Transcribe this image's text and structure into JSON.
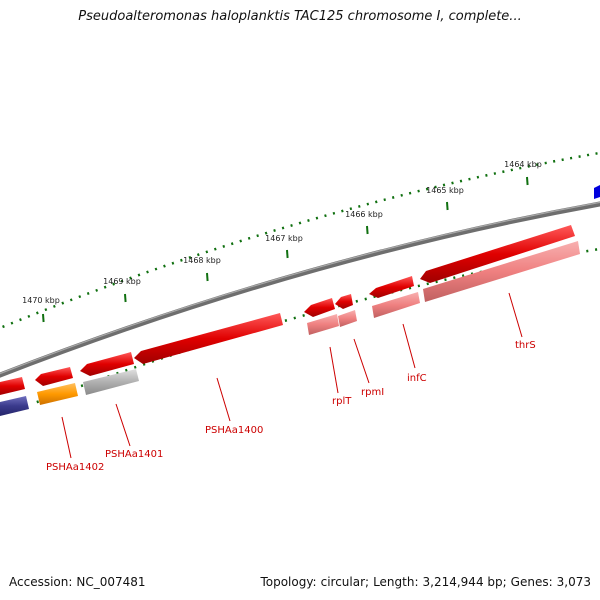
{
  "title": "Pseudoalteromonas haloplanktis TAC125 chromosome I, complete...",
  "footer": {
    "accession_label": "Accession:",
    "accession": "NC_007481",
    "topology_label": "Topology:",
    "topology": "circular;",
    "length_label": "Length:",
    "length": "3,214,944 bp;",
    "genes_label": "Genes:",
    "genes": "3,073"
  },
  "scale": {
    "labels": [
      "1464 kbp",
      "1465 kbp",
      "1466 kbp",
      "1467 kbp",
      "1468 kbp",
      "1469 kbp",
      "1470 kbp"
    ]
  },
  "genes": [
    {
      "name": "thrS",
      "color": "#e00000"
    },
    {
      "name": "infC",
      "color": "#e00000"
    },
    {
      "name": "rpmI",
      "color": "#e00000"
    },
    {
      "name": "rplT",
      "color": "#e00000"
    },
    {
      "name": "PSHAa1400",
      "color": "#e00000"
    },
    {
      "name": "PSHAa1401",
      "color": "#a0a0a0"
    },
    {
      "name": "PSHAa1402",
      "color": "#ff9900"
    }
  ],
  "colors": {
    "backbone": "#777777",
    "ticks": "#107010",
    "gene_label": "#cc0000",
    "forward_feature": "#e00000",
    "product_feature": "#f08080",
    "left_feature_dark": "#3a3a8c",
    "edge_feature_blue": "#0000dd"
  }
}
